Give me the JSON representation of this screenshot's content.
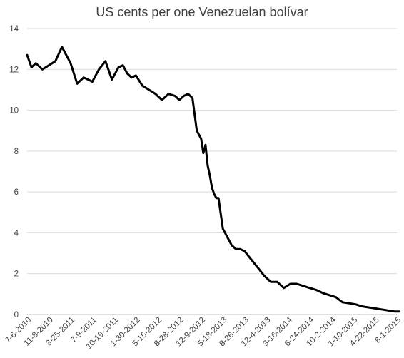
{
  "chart_data": {
    "type": "line",
    "title": "US cents per one Venezuelan bolívar",
    "xlabel": "",
    "ylabel": "",
    "ylim": [
      0,
      14
    ],
    "yticks": [
      "0",
      "2",
      "4",
      "6",
      "8",
      "10",
      "12",
      "14"
    ],
    "xticks": [
      "7-6-2010",
      "11-8-2010",
      "3-25-2011",
      "7-9-2011",
      "10-19-2011",
      "1-30-2012",
      "5-15-2012",
      "8-28-2012",
      "12-9-2012",
      "5-18-2013",
      "8-26-2013",
      "12-4-2013",
      "3-16-2014",
      "6-24-2014",
      "10-2-2014",
      "1-10-2015",
      "4-22-2015",
      "8-1-2015"
    ],
    "grid": true,
    "legend": "none",
    "series_color": "#000000",
    "series": [
      {
        "x": [
          0,
          0.2,
          0.4,
          0.7,
          1.0,
          1.3,
          1.6,
          2.0,
          2.3,
          2.6,
          3.0,
          3.3,
          3.6,
          3.9,
          4.2,
          4.4,
          4.6,
          4.8,
          5.0,
          5.3,
          5.6,
          5.9,
          6.2,
          6.5,
          6.8,
          7.0,
          7.2,
          7.4,
          7.6,
          7.8,
          8.0,
          8.1,
          8.2,
          8.3,
          8.4,
          8.5,
          8.6,
          8.7,
          8.8,
          9.0,
          9.2,
          9.4,
          9.6,
          9.8,
          10.0,
          10.3,
          10.6,
          10.9,
          11.2,
          11.5,
          11.8,
          12.1,
          12.4,
          12.7,
          13.0,
          13.3,
          13.6,
          13.9,
          14.2,
          14.5,
          14.8,
          15.1,
          15.4,
          15.7,
          16.0,
          16.3,
          16.6,
          16.9,
          17.1
        ],
        "y": [
          12.7,
          12.1,
          12.3,
          12.0,
          12.2,
          12.4,
          13.1,
          12.3,
          11.3,
          11.6,
          11.4,
          12.0,
          12.4,
          11.5,
          12.1,
          12.2,
          11.8,
          11.6,
          11.7,
          11.2,
          11.0,
          10.8,
          10.5,
          10.8,
          10.7,
          10.5,
          10.7,
          10.8,
          10.6,
          9.0,
          8.6,
          7.9,
          8.3,
          7.3,
          6.8,
          6.2,
          5.9,
          5.7,
          5.7,
          4.2,
          3.8,
          3.4,
          3.2,
          3.2,
          3.1,
          2.7,
          2.3,
          1.9,
          1.6,
          1.6,
          1.3,
          1.5,
          1.5,
          1.4,
          1.3,
          1.2,
          1.05,
          0.95,
          0.85,
          0.6,
          0.55,
          0.5,
          0.4,
          0.35,
          0.3,
          0.25,
          0.2,
          0.15,
          0.15
        ]
      }
    ]
  }
}
